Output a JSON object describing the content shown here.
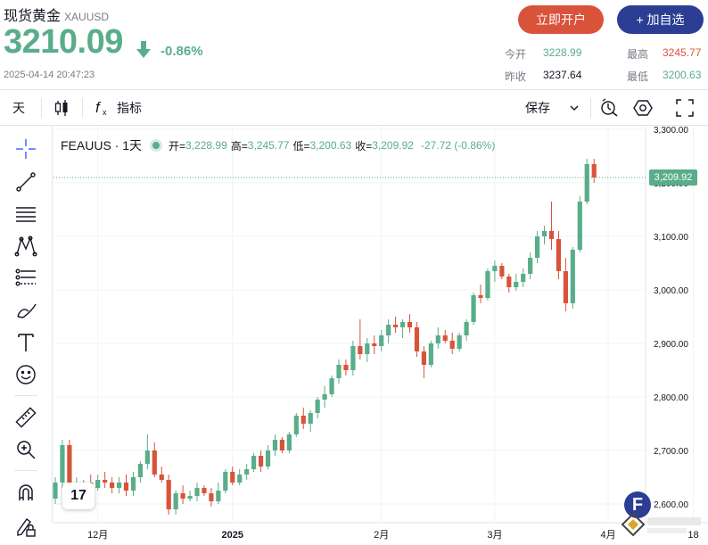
{
  "header": {
    "title": "现货黄金",
    "symbol": "XAUUSD",
    "price": "3210.09",
    "change_pct": "-0.86%",
    "timestamp": "2025-04-14 20:47:23",
    "open_account_label": "立即开户",
    "watchlist_label": "+ 加自选",
    "stats": {
      "open_label": "今开",
      "open_value": "3228.99",
      "prev_close_label": "昨收",
      "prev_close_value": "3237.64",
      "high_label": "最高",
      "high_value": "3245.77",
      "low_label": "最低",
      "low_value": "3200.63"
    },
    "colors": {
      "up": "#59ad8a",
      "down": "#d9533b",
      "brand": "#2b3e93"
    }
  },
  "toolbar": {
    "interval_label": "天",
    "candle_icon": "candlestick-icon",
    "indicator_icon": "function-icon",
    "indicator_label": "指标",
    "save_label": "保存",
    "icons": [
      "chevron-down-icon",
      "alert-icon",
      "settings-icon",
      "fullscreen-icon"
    ]
  },
  "left_tools": [
    "crosshair-icon",
    "trendline-icon",
    "horizontal-lines-icon",
    "pattern-icon",
    "fib-icon",
    "brush-icon",
    "text-icon",
    "emoji-icon",
    "ruler-icon",
    "zoom-icon",
    "magnet-icon",
    "lock-pencil-icon"
  ],
  "legend": {
    "name": "FEAUUS · 1天",
    "open_label": "开=",
    "open": "3,228.99",
    "high_label": "高=",
    "high": "3,245.77",
    "low_label": "低=",
    "low": "3,200.63",
    "close_label": "收=",
    "close": "3,209.92",
    "change": "-27.72 (-0.86%)"
  },
  "badges": {
    "tradingview": "17",
    "f_badge": "F"
  },
  "chart_data": {
    "type": "candlestick",
    "y_ticks": [
      "3,300.00",
      "3,200.00",
      "3,100.00",
      "3,000.00",
      "2,900.00",
      "2,800.00",
      "2,700.00",
      "2,600.00"
    ],
    "y_tick_values": [
      3300,
      3200,
      3100,
      3000,
      2900,
      2800,
      2700,
      2600
    ],
    "ylim": [
      2565,
      3305
    ],
    "x_labels": [
      {
        "label": "12月",
        "index": 6
      },
      {
        "label": "2025",
        "index": 25
      },
      {
        "label": "2月",
        "index": 46
      },
      {
        "label": "3月",
        "index": 62
      },
      {
        "label": "4月",
        "index": 78
      },
      {
        "label": "18",
        "index": 90
      }
    ],
    "last_price_label": "3,209.92",
    "last_price": 3209.92,
    "ohlc": [
      [
        2610,
        2650,
        2600,
        2640
      ],
      [
        2640,
        2720,
        2630,
        2710
      ],
      [
        2710,
        2720,
        2615,
        2625
      ],
      [
        2625,
        2650,
        2610,
        2635
      ],
      [
        2635,
        2645,
        2615,
        2640
      ],
      [
        2640,
        2655,
        2620,
        2630
      ],
      [
        2630,
        2655,
        2625,
        2645
      ],
      [
        2645,
        2660,
        2630,
        2640
      ],
      [
        2640,
        2650,
        2620,
        2630
      ],
      [
        2630,
        2650,
        2620,
        2640
      ],
      [
        2640,
        2655,
        2615,
        2625
      ],
      [
        2625,
        2660,
        2615,
        2650
      ],
      [
        2650,
        2680,
        2640,
        2675
      ],
      [
        2675,
        2730,
        2665,
        2700
      ],
      [
        2700,
        2715,
        2650,
        2655
      ],
      [
        2655,
        2670,
        2640,
        2645
      ],
      [
        2645,
        2655,
        2580,
        2590
      ],
      [
        2590,
        2625,
        2580,
        2620
      ],
      [
        2620,
        2635,
        2600,
        2610
      ],
      [
        2610,
        2625,
        2605,
        2615
      ],
      [
        2615,
        2640,
        2605,
        2630
      ],
      [
        2630,
        2635,
        2615,
        2620
      ],
      [
        2620,
        2630,
        2595,
        2605
      ],
      [
        2605,
        2640,
        2600,
        2625
      ],
      [
        2625,
        2665,
        2620,
        2660
      ],
      [
        2660,
        2670,
        2635,
        2640
      ],
      [
        2640,
        2665,
        2635,
        2655
      ],
      [
        2655,
        2675,
        2645,
        2665
      ],
      [
        2665,
        2695,
        2660,
        2690
      ],
      [
        2690,
        2700,
        2660,
        2670
      ],
      [
        2670,
        2710,
        2665,
        2700
      ],
      [
        2700,
        2730,
        2690,
        2720
      ],
      [
        2720,
        2725,
        2695,
        2700
      ],
      [
        2700,
        2735,
        2695,
        2730
      ],
      [
        2730,
        2770,
        2725,
        2765
      ],
      [
        2765,
        2780,
        2740,
        2750
      ],
      [
        2750,
        2775,
        2735,
        2770
      ],
      [
        2770,
        2800,
        2760,
        2795
      ],
      [
        2795,
        2820,
        2780,
        2805
      ],
      [
        2805,
        2840,
        2800,
        2835
      ],
      [
        2835,
        2870,
        2825,
        2860
      ],
      [
        2860,
        2870,
        2840,
        2850
      ],
      [
        2850,
        2905,
        2840,
        2895
      ],
      [
        2895,
        2945,
        2870,
        2880
      ],
      [
        2880,
        2910,
        2865,
        2900
      ],
      [
        2900,
        2915,
        2880,
        2895
      ],
      [
        2895,
        2925,
        2885,
        2915
      ],
      [
        2915,
        2945,
        2900,
        2935
      ],
      [
        2935,
        2950,
        2920,
        2930
      ],
      [
        2930,
        2945,
        2910,
        2940
      ],
      [
        2940,
        2955,
        2920,
        2930
      ],
      [
        2930,
        2940,
        2875,
        2885
      ],
      [
        2885,
        2895,
        2835,
        2860
      ],
      [
        2860,
        2905,
        2855,
        2900
      ],
      [
        2900,
        2930,
        2890,
        2915
      ],
      [
        2915,
        2925,
        2900,
        2905
      ],
      [
        2905,
        2920,
        2880,
        2890
      ],
      [
        2890,
        2920,
        2885,
        2915
      ],
      [
        2915,
        2945,
        2905,
        2940
      ],
      [
        2940,
        2995,
        2935,
        2990
      ],
      [
        2990,
        3010,
        2975,
        2985
      ],
      [
        2985,
        3040,
        2980,
        3035
      ],
      [
        3035,
        3055,
        3015,
        3045
      ],
      [
        3045,
        3050,
        3020,
        3025
      ],
      [
        3025,
        3030,
        2995,
        3005
      ],
      [
        3005,
        3030,
        2998,
        3015
      ],
      [
        3015,
        3040,
        3005,
        3030
      ],
      [
        3030,
        3070,
        3020,
        3060
      ],
      [
        3060,
        3110,
        3050,
        3100
      ],
      [
        3100,
        3120,
        3085,
        3110
      ],
      [
        3110,
        3165,
        3075,
        3095
      ],
      [
        3095,
        3110,
        3020,
        3035
      ],
      [
        3035,
        3060,
        2960,
        2975
      ],
      [
        2975,
        3080,
        2965,
        3075
      ],
      [
        3075,
        3175,
        3070,
        3165
      ],
      [
        3165,
        3245,
        3160,
        3235
      ],
      [
        3235,
        3245,
        3200,
        3210
      ]
    ]
  }
}
